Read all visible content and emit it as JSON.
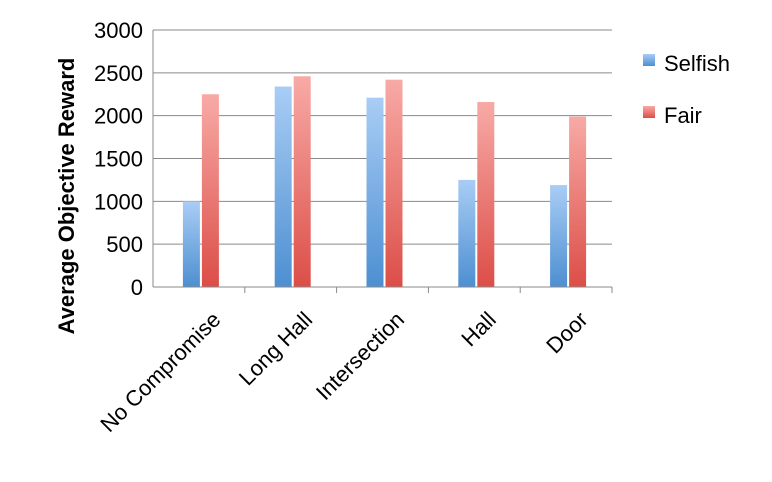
{
  "chart_data": {
    "type": "bar",
    "ylabel": "Average Objective Reward",
    "xlabel": "",
    "ylim": [
      0,
      3000
    ],
    "yticks": [
      0,
      500,
      1000,
      1500,
      2000,
      2500,
      3000
    ],
    "categories": [
      "No Compromise",
      "Long Hall",
      "Intersection",
      "Hall",
      "Door"
    ],
    "series": [
      {
        "name": "Selfish",
        "values": [
          1000,
          2340,
          2210,
          1250,
          1190
        ],
        "color": "#5b9bd5"
      },
      {
        "name": "Fair",
        "values": [
          2250,
          2460,
          2420,
          2160,
          1990
        ],
        "color": "#e9605a"
      }
    ],
    "grid": true,
    "legend": "right"
  }
}
